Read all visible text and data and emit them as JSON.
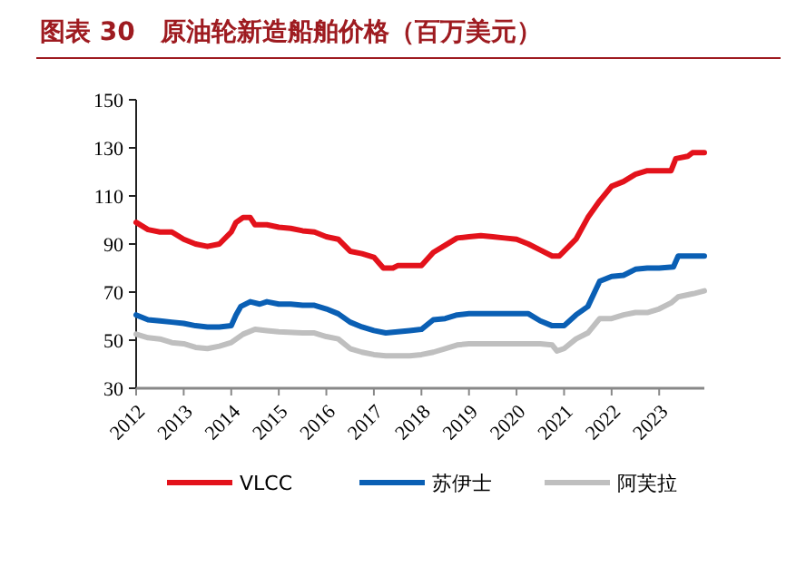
{
  "chart_data": {
    "type": "line",
    "title": "图表 30　原油轮新造船舶价格（百万美元）",
    "xlim": [
      2012,
      2023.95
    ],
    "xticks": [
      2012,
      2013,
      2014,
      2015,
      2016,
      2017,
      2018,
      2019,
      2020,
      2021,
      2022,
      2023
    ],
    "ylim": [
      30,
      150
    ],
    "yticks": [
      30,
      50,
      70,
      90,
      110,
      130,
      150
    ],
    "grid": false,
    "legend": "bottom",
    "marker": "none",
    "line_style": "solid",
    "series": [
      {
        "name": "VLCC",
        "color": "#e3121b",
        "x": [
          2012,
          2012.25,
          2012.5,
          2012.75,
          2013,
          2013.25,
          2013.5,
          2013.75,
          2014,
          2014.1,
          2014.25,
          2014.4,
          2014.5,
          2014.75,
          2015,
          2015.25,
          2015.5,
          2015.75,
          2016,
          2016.25,
          2016.5,
          2016.75,
          2017,
          2017.2,
          2017.4,
          2017.5,
          2018,
          2018.25,
          2018.5,
          2018.75,
          2019,
          2019.25,
          2019.5,
          2019.75,
          2020,
          2020.25,
          2020.5,
          2020.75,
          2020.9,
          2021,
          2021.25,
          2021.5,
          2021.75,
          2022,
          2022.25,
          2022.5,
          2022.75,
          2023,
          2023.25,
          2023.35,
          2023.6,
          2023.7,
          2023.95
        ],
        "values": [
          99,
          96,
          95,
          95,
          92,
          90,
          89,
          90,
          95,
          99,
          101,
          101,
          98,
          98,
          97,
          96.5,
          95.5,
          95,
          93,
          92,
          87,
          86,
          84.5,
          80,
          80,
          81,
          81,
          86.5,
          89.5,
          92.5,
          93,
          93.5,
          93,
          92.5,
          92,
          90,
          87.5,
          85,
          85,
          87,
          92,
          101,
          108,
          114,
          116,
          119,
          120.5,
          120.5,
          120.5,
          125.5,
          126.5,
          128,
          128
        ]
      },
      {
        "name": "苏伊士",
        "color": "#0a5fb4",
        "x": [
          2012,
          2012.25,
          2012.5,
          2012.75,
          2013,
          2013.25,
          2013.5,
          2013.75,
          2014,
          2014.1,
          2014.2,
          2014.4,
          2014.6,
          2014.75,
          2015,
          2015.25,
          2015.5,
          2015.75,
          2016,
          2016.25,
          2016.5,
          2016.75,
          2017,
          2017.25,
          2017.5,
          2017.75,
          2018,
          2018.25,
          2018.5,
          2018.75,
          2019,
          2019.5,
          2020,
          2020.25,
          2020.5,
          2020.75,
          2021,
          2021.25,
          2021.5,
          2021.75,
          2022,
          2022.25,
          2022.5,
          2022.75,
          2023,
          2023.3,
          2023.4,
          2023.95
        ],
        "values": [
          60.5,
          58.5,
          58,
          57.5,
          57,
          56,
          55.5,
          55.5,
          56,
          60.5,
          64,
          66,
          65,
          66,
          65,
          65,
          64.5,
          64.5,
          63,
          61,
          57.5,
          55.5,
          54,
          53,
          53.5,
          54,
          54.5,
          58.5,
          59,
          60.5,
          61,
          61,
          61,
          61,
          58,
          56,
          56,
          60.5,
          64,
          74.5,
          76.5,
          77,
          79.5,
          80,
          80,
          80.5,
          85,
          85
        ]
      },
      {
        "name": "阿芙拉",
        "color": "#bfbfbf",
        "x": [
          2012,
          2012.25,
          2012.5,
          2012.75,
          2013,
          2013.25,
          2013.5,
          2013.75,
          2014,
          2014.25,
          2014.5,
          2014.75,
          2015,
          2015.5,
          2015.75,
          2016,
          2016.25,
          2016.5,
          2016.75,
          2017,
          2017.25,
          2017.5,
          2017.75,
          2018,
          2018.25,
          2018.5,
          2018.75,
          2019,
          2019.5,
          2020,
          2020.5,
          2020.75,
          2020.85,
          2021,
          2021.25,
          2021.5,
          2021.75,
          2022,
          2022.25,
          2022.5,
          2022.75,
          2023,
          2023.25,
          2023.4,
          2023.75,
          2023.95
        ],
        "values": [
          52.5,
          51,
          50.5,
          49,
          48.5,
          47,
          46.5,
          47.5,
          49,
          52.5,
          54.5,
          54,
          53.5,
          53,
          53,
          51.5,
          50.5,
          46.5,
          45,
          44,
          43.5,
          43.5,
          43.5,
          44,
          45,
          46.5,
          48,
          48.5,
          48.5,
          48.5,
          48.5,
          48,
          45.5,
          46.5,
          50.5,
          53,
          59,
          59,
          60.5,
          61.5,
          61.5,
          63,
          65.5,
          68,
          69.5,
          70.5
        ]
      }
    ]
  }
}
